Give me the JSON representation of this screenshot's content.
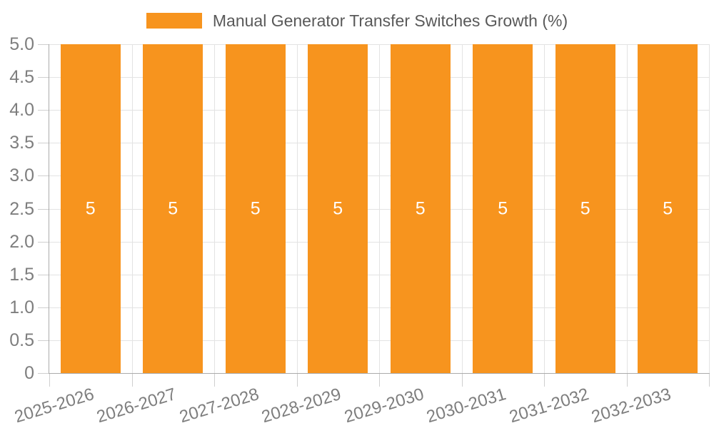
{
  "chart_data": {
    "type": "bar",
    "legend_label": "Manual Generator Transfer Switches Growth (%)",
    "legend_position": "top-center",
    "categories": [
      "2025-2026",
      "2026-2027",
      "2027-2028",
      "2028-2029",
      "2029-2030",
      "2030-2031",
      "2031-2032",
      "2032-2033"
    ],
    "values": [
      5,
      5,
      5,
      5,
      5,
      5,
      5,
      5
    ],
    "bar_value_labels": [
      "5",
      "5",
      "5",
      "5",
      "5",
      "5",
      "5",
      "5"
    ],
    "xlabel": "",
    "ylabel": "",
    "ylim": [
      0,
      5
    ],
    "ytick_labels": [
      "0",
      "0.5",
      "1.0",
      "1.5",
      "2.0",
      "2.5",
      "3.0",
      "3.5",
      "4.0",
      "4.5",
      "5.0"
    ],
    "grid": true,
    "colors": {
      "bar": "#F7941E",
      "bar_label": "#FFFFFF",
      "background": "#FFFFFF",
      "grid_line": "#E3E3E3",
      "axis_line": "#ABABAB",
      "tick_mark": "#CFCFCF",
      "tick_label": "#7E7E7E",
      "legend_text": "#595959"
    }
  }
}
